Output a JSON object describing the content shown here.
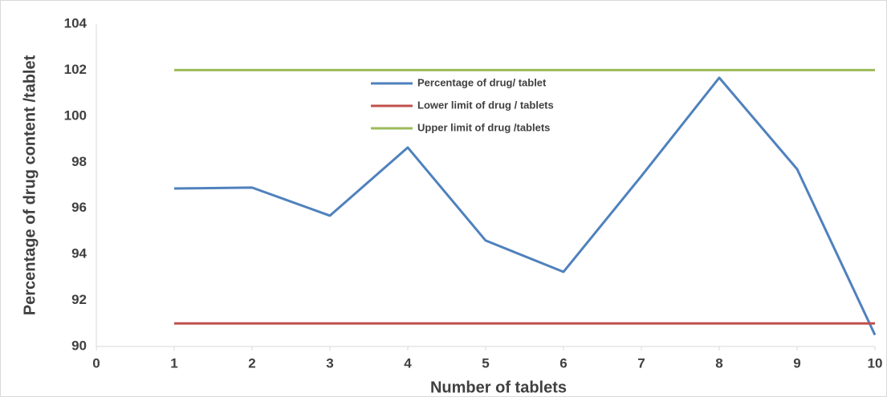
{
  "chart_data": {
    "type": "line",
    "x_label": "Number of tablets",
    "y_label": "Percentage of drug content /tablet",
    "x": [
      1,
      2,
      3,
      4,
      5,
      6,
      7,
      8,
      9,
      10
    ],
    "series": [
      {
        "name": "Percentage of drug/ tablet",
        "color": "#4f81bd",
        "values": [
          96.86,
          96.9,
          95.68,
          98.64,
          94.6,
          93.24,
          97.4,
          101.67,
          97.7,
          90.5
        ]
      },
      {
        "name": "Lower limit of drug / tablets",
        "color": "#c0504d",
        "values": [
          91,
          91,
          91,
          91,
          91,
          91,
          91,
          91,
          91,
          91
        ]
      },
      {
        "name": "Upper limit of drug /tablets",
        "color": "#9bbb59",
        "values": [
          102,
          102,
          102,
          102,
          102,
          102,
          102,
          102,
          102,
          102
        ]
      }
    ],
    "xlim": [
      0,
      10
    ],
    "xticks": [
      0,
      1,
      2,
      3,
      4,
      5,
      6,
      7,
      8,
      9,
      10
    ],
    "ylim": [
      90,
      104
    ],
    "yticks": [
      90,
      92,
      94,
      96,
      98,
      100,
      102,
      104
    ],
    "grid": false,
    "legend": "top-center"
  }
}
